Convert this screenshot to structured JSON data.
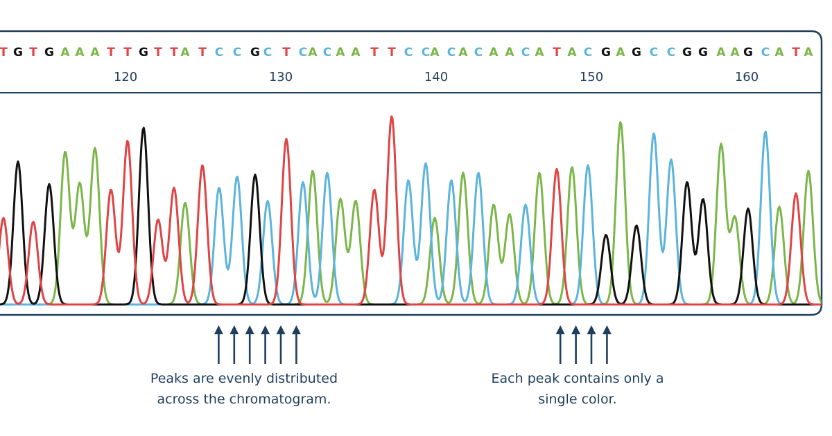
{
  "chart_data": {
    "type": "line",
    "title": "",
    "xlabel": "",
    "ylabel": "",
    "base_colors": {
      "A": "#7ab648",
      "C": "#5bb4dc",
      "G": "#111111",
      "T": "#e04343"
    },
    "sequence": [
      "T",
      "G",
      "T",
      "G",
      "A",
      "A",
      "A",
      "T",
      "T",
      "G",
      "T",
      "T",
      "A",
      "T",
      "C",
      "C",
      "G",
      "C",
      "T",
      "C",
      "A",
      "C",
      "A",
      "A",
      "T",
      "T",
      "C",
      "C",
      "A",
      "C",
      "A",
      "C",
      "A",
      "A",
      "C",
      "A",
      "T",
      "A",
      "C",
      "G",
      "A",
      "G",
      "C",
      "C",
      "G",
      "G",
      "A",
      "A",
      "G",
      "C",
      "A",
      "T",
      "A"
    ],
    "position_ticks": [
      {
        "position": 120,
        "label": "120"
      },
      {
        "position": 130,
        "label": "130"
      },
      {
        "position": 140,
        "label": "140"
      },
      {
        "position": 150,
        "label": "150"
      },
      {
        "position": 160,
        "label": "160"
      }
    ],
    "peaks": [
      {
        "base": "T",
        "x": 5,
        "height": 0.46
      },
      {
        "base": "G",
        "x": 26,
        "height": 0.76
      },
      {
        "base": "T",
        "x": 48,
        "height": 0.44
      },
      {
        "base": "G",
        "x": 71,
        "height": 0.64
      },
      {
        "base": "A",
        "x": 94,
        "height": 0.81
      },
      {
        "base": "A",
        "x": 115,
        "height": 0.64
      },
      {
        "base": "A",
        "x": 137,
        "height": 0.83
      },
      {
        "base": "T",
        "x": 160,
        "height": 0.61
      },
      {
        "base": "T",
        "x": 184,
        "height": 0.87
      },
      {
        "base": "G",
        "x": 207,
        "height": 0.94
      },
      {
        "base": "T",
        "x": 228,
        "height": 0.45
      },
      {
        "base": "T",
        "x": 251,
        "height": 0.62
      },
      {
        "base": "A",
        "x": 267,
        "height": 0.54
      },
      {
        "base": "T",
        "x": 292,
        "height": 0.74
      },
      {
        "base": "C",
        "x": 316,
        "height": 0.62
      },
      {
        "base": "C",
        "x": 342,
        "height": 0.68
      },
      {
        "base": "G",
        "x": 368,
        "height": 0.69
      },
      {
        "base": "C",
        "x": 386,
        "height": 0.55
      },
      {
        "base": "T",
        "x": 413,
        "height": 0.88
      },
      {
        "base": "C",
        "x": 437,
        "height": 0.65
      },
      {
        "base": "A",
        "x": 451,
        "height": 0.71
      },
      {
        "base": "C",
        "x": 472,
        "height": 0.7
      },
      {
        "base": "A",
        "x": 491,
        "height": 0.56
      },
      {
        "base": "A",
        "x": 513,
        "height": 0.55
      },
      {
        "base": "T",
        "x": 540,
        "height": 0.61
      },
      {
        "base": "T",
        "x": 565,
        "height": 1.0
      },
      {
        "base": "C",
        "x": 589,
        "height": 0.66
      },
      {
        "base": "C",
        "x": 614,
        "height": 0.75
      },
      {
        "base": "A",
        "x": 627,
        "height": 0.46
      },
      {
        "base": "C",
        "x": 651,
        "height": 0.66
      },
      {
        "base": "A",
        "x": 668,
        "height": 0.7
      },
      {
        "base": "C",
        "x": 690,
        "height": 0.7
      },
      {
        "base": "A",
        "x": 712,
        "height": 0.53
      },
      {
        "base": "A",
        "x": 735,
        "height": 0.48
      },
      {
        "base": "C",
        "x": 758,
        "height": 0.53
      },
      {
        "base": "A",
        "x": 778,
        "height": 0.7
      },
      {
        "base": "T",
        "x": 803,
        "height": 0.72
      },
      {
        "base": "A",
        "x": 825,
        "height": 0.73
      },
      {
        "base": "C",
        "x": 848,
        "height": 0.74
      },
      {
        "base": "G",
        "x": 874,
        "height": 0.37
      },
      {
        "base": "A",
        "x": 895,
        "height": 0.97
      },
      {
        "base": "G",
        "x": 918,
        "height": 0.42
      },
      {
        "base": "C",
        "x": 943,
        "height": 0.91
      },
      {
        "base": "C",
        "x": 968,
        "height": 0.77
      },
      {
        "base": "G",
        "x": 991,
        "height": 0.65
      },
      {
        "base": "G",
        "x": 1014,
        "height": 0.56
      },
      {
        "base": "A",
        "x": 1040,
        "height": 0.85
      },
      {
        "base": "A",
        "x": 1060,
        "height": 0.46
      },
      {
        "base": "G",
        "x": 1079,
        "height": 0.51
      },
      {
        "base": "C",
        "x": 1104,
        "height": 0.92
      },
      {
        "base": "A",
        "x": 1124,
        "height": 0.52
      },
      {
        "base": "T",
        "x": 1148,
        "height": 0.59
      },
      {
        "base": "A",
        "x": 1166,
        "height": 0.71
      }
    ]
  },
  "annotations": [
    {
      "lines": [
        "Peaks are evenly distributed",
        "across the chromatogram."
      ],
      "arrow_positions": [
        126,
        127,
        128,
        129,
        130,
        131
      ]
    },
    {
      "lines": [
        "Each peak contains only a",
        "single color."
      ],
      "arrow_positions": [
        148,
        149,
        150,
        151
      ]
    }
  ]
}
